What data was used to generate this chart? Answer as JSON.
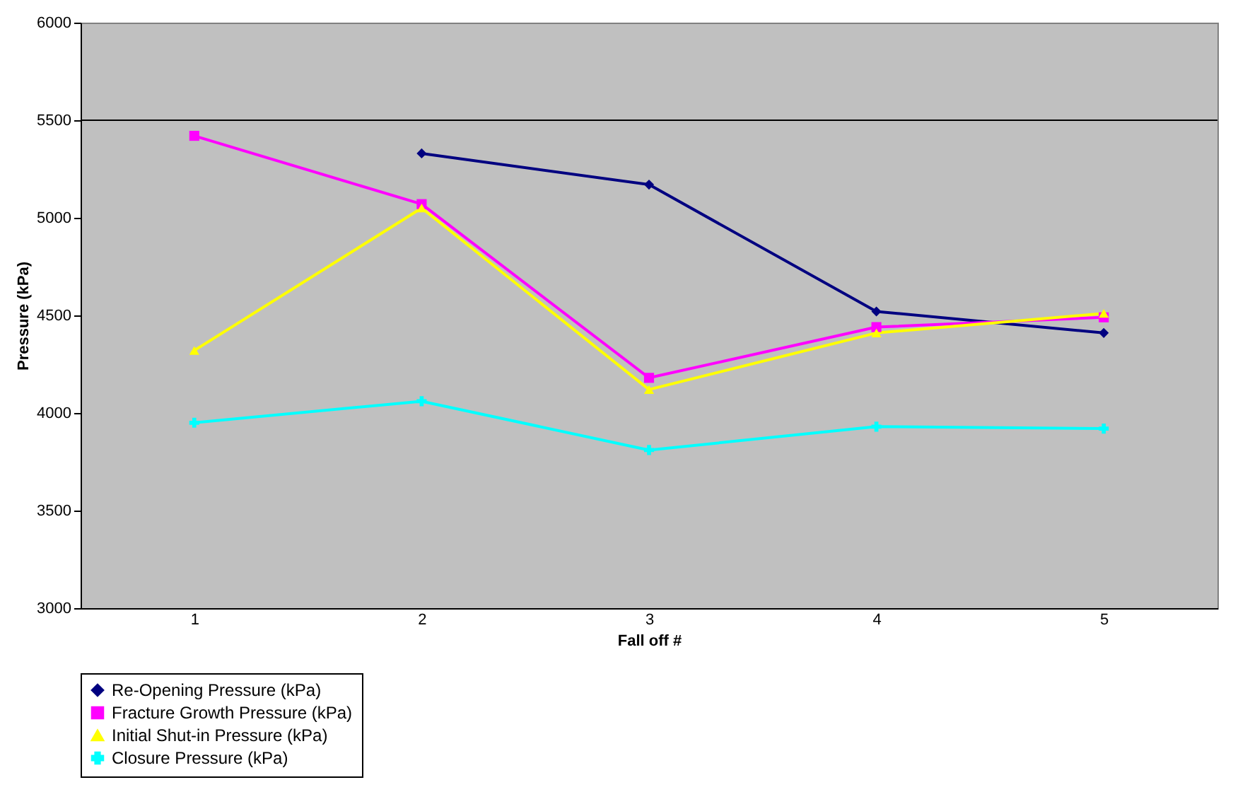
{
  "chart_data": {
    "type": "line",
    "xlabel": "Fall off #",
    "ylabel": "Pressure (kPa)",
    "categories": [
      "1",
      "2",
      "3",
      "4",
      "5"
    ],
    "series": [
      {
        "name": "Re-Opening  Pressure (kPa)",
        "color": "#000080",
        "marker": "diamond",
        "values": [
          null,
          5330,
          5170,
          4520,
          4410
        ]
      },
      {
        "name": "Fracture Growth Pressure (kPa)",
        "color": "#ff00ff",
        "marker": "square",
        "values": [
          5420,
          5070,
          4180,
          4440,
          4490
        ]
      },
      {
        "name": "Initial Shut-in Pressure (kPa)",
        "color": "#ffff00",
        "marker": "triangle",
        "values": [
          4320,
          5050,
          4120,
          4410,
          4510
        ]
      },
      {
        "name": "Closure Pressure (kPa)",
        "color": "#00ffff",
        "marker": "cross",
        "values": [
          3950,
          4060,
          3810,
          3930,
          3920
        ]
      }
    ],
    "ylim": [
      3000,
      6000
    ],
    "yticks": [
      3000,
      3500,
      4000,
      4500,
      5000,
      5500,
      6000
    ],
    "ref_lines": [
      {
        "axis": "y",
        "value": 5500,
        "color": "#000000"
      }
    ],
    "grid": false,
    "legend": "bottom"
  }
}
